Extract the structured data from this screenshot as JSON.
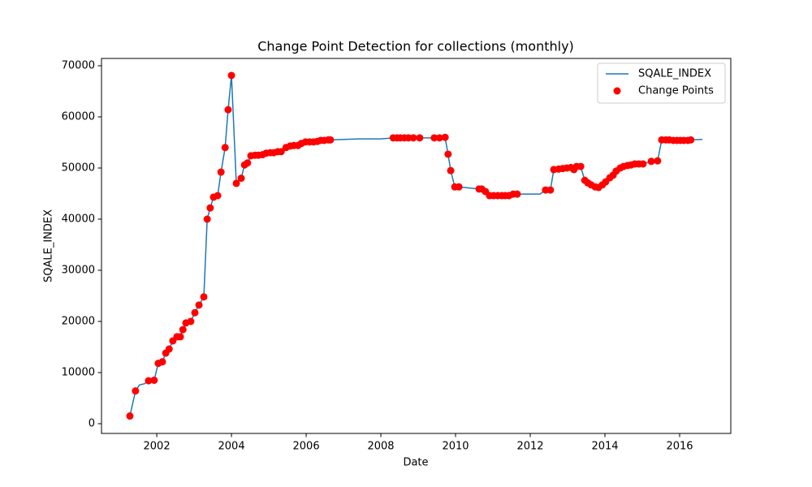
{
  "chart_data": {
    "type": "line",
    "title": "Change Point Detection for collections (monthly)",
    "xlabel": "Date",
    "ylabel": "SQALE_INDEX",
    "xlim": [
      2000.52,
      2017.37
    ],
    "ylim": [
      -1905,
      71429
    ],
    "xticks": [
      2002,
      2004,
      2006,
      2008,
      2010,
      2012,
      2014,
      2016
    ],
    "yticks": [
      0,
      10000,
      20000,
      30000,
      40000,
      50000,
      60000,
      70000
    ],
    "grid": false,
    "legend": "upper right",
    "series": [
      {
        "name": "SQALE_INDEX",
        "type": "line",
        "color": "#1f77b4",
        "x": [
          2001.28,
          2001.43,
          2001.54,
          2001.67,
          2001.78,
          2001.93,
          2002.04,
          2002.15,
          2002.24,
          2002.33,
          2002.43,
          2002.54,
          2002.63,
          2002.7,
          2002.78,
          2002.91,
          2003.02,
          2003.13,
          2003.26,
          2003.35,
          2003.43,
          2003.52,
          2003.63,
          2003.72,
          2003.83,
          2003.91,
          2004.0,
          2004.13,
          2004.26,
          2004.35,
          2004.43,
          2004.52,
          2004.63,
          2004.72,
          2004.83,
          2004.93,
          2005.04,
          2005.13,
          2005.24,
          2005.33,
          2005.46,
          2005.57,
          2005.67,
          2005.78,
          2005.87,
          2005.98,
          2006.09,
          2006.2,
          2006.3,
          2006.39,
          2006.48,
          2006.59,
          2006.65,
          2007.4,
          2008.0,
          2008.33,
          2008.43,
          2008.52,
          2008.63,
          2008.74,
          2008.87,
          2009.04,
          2009.43,
          2009.57,
          2009.72,
          2009.8,
          2009.87,
          2009.98,
          2010.09,
          2010.63,
          2010.7,
          2010.8,
          2010.91,
          2011.02,
          2011.13,
          2011.24,
          2011.33,
          2011.43,
          2011.54,
          2011.65,
          2012.26,
          2012.41,
          2012.54,
          2012.63,
          2012.76,
          2012.87,
          2012.98,
          2013.09,
          2013.17,
          2013.24,
          2013.35,
          2013.46,
          2013.54,
          2013.63,
          2013.74,
          2013.83,
          2013.93,
          2014.02,
          2014.13,
          2014.22,
          2014.3,
          2014.41,
          2014.5,
          2014.61,
          2014.7,
          2014.8,
          2014.91,
          2015.02,
          2015.24,
          2015.41,
          2015.52,
          2015.63,
          2015.72,
          2015.83,
          2015.93,
          2016.02,
          2016.11,
          2016.22,
          2016.3,
          2016.61
        ],
        "values": [
          1500,
          6400,
          7600,
          7800,
          8400,
          8500,
          11800,
          12100,
          13800,
          14600,
          16200,
          17000,
          17000,
          18400,
          19700,
          20000,
          21700,
          23200,
          24800,
          40000,
          42200,
          44300,
          44600,
          49200,
          54000,
          61400,
          68100,
          47000,
          48000,
          50600,
          51000,
          52400,
          52500,
          52500,
          52600,
          52900,
          53000,
          53000,
          53200,
          53200,
          54000,
          54300,
          54400,
          54400,
          54800,
          55100,
          55100,
          55100,
          55200,
          55400,
          55400,
          55500,
          55500,
          55700,
          55700,
          55900,
          55900,
          55900,
          55900,
          55900,
          55900,
          55900,
          55900,
          55900,
          56000,
          52700,
          49500,
          46300,
          46300,
          45900,
          45900,
          45400,
          44600,
          44600,
          44600,
          44600,
          44600,
          44600,
          44900,
          44900,
          44900,
          45700,
          45700,
          49700,
          49800,
          49900,
          50000,
          50100,
          49700,
          50300,
          50300,
          47600,
          47100,
          46700,
          46300,
          46200,
          46700,
          47300,
          48100,
          48600,
          49400,
          50000,
          50300,
          50500,
          50600,
          50800,
          50800,
          50800,
          51300,
          51400,
          55500,
          55500,
          55500,
          55400,
          55400,
          55400,
          55400,
          55400,
          55500,
          55600
        ]
      },
      {
        "name": "Change Points",
        "type": "scatter",
        "color": "#ff0000",
        "x": [
          2001.28,
          2001.43,
          2001.78,
          2001.93,
          2002.04,
          2002.15,
          2002.24,
          2002.33,
          2002.43,
          2002.54,
          2002.63,
          2002.7,
          2002.78,
          2002.91,
          2003.02,
          2003.13,
          2003.26,
          2003.35,
          2003.43,
          2003.52,
          2003.63,
          2003.72,
          2003.83,
          2003.91,
          2004.0,
          2004.13,
          2004.26,
          2004.35,
          2004.43,
          2004.52,
          2004.63,
          2004.72,
          2004.83,
          2004.93,
          2005.04,
          2005.13,
          2005.24,
          2005.33,
          2005.46,
          2005.57,
          2005.67,
          2005.78,
          2005.87,
          2005.98,
          2006.09,
          2006.2,
          2006.3,
          2006.39,
          2006.48,
          2006.59,
          2006.65,
          2008.33,
          2008.43,
          2008.52,
          2008.63,
          2008.74,
          2008.87,
          2009.04,
          2009.43,
          2009.57,
          2009.72,
          2009.8,
          2009.87,
          2009.98,
          2010.09,
          2010.63,
          2010.7,
          2010.8,
          2010.91,
          2011.02,
          2011.13,
          2011.24,
          2011.33,
          2011.43,
          2011.54,
          2011.65,
          2012.41,
          2012.54,
          2012.63,
          2012.76,
          2012.87,
          2012.98,
          2013.09,
          2013.17,
          2013.24,
          2013.35,
          2013.46,
          2013.54,
          2013.63,
          2013.74,
          2013.83,
          2013.93,
          2014.02,
          2014.13,
          2014.22,
          2014.3,
          2014.41,
          2014.5,
          2014.61,
          2014.7,
          2014.8,
          2014.91,
          2015.02,
          2015.24,
          2015.41,
          2015.52,
          2015.63,
          2015.72,
          2015.83,
          2015.93,
          2016.02,
          2016.11,
          2016.22,
          2016.3
        ],
        "values": [
          1500,
          6400,
          8400,
          8500,
          11800,
          12100,
          13800,
          14600,
          16200,
          17000,
          17000,
          18400,
          19700,
          20000,
          21700,
          23200,
          24800,
          40000,
          42200,
          44300,
          44600,
          49200,
          54000,
          61400,
          68100,
          47000,
          48000,
          50600,
          51000,
          52400,
          52500,
          52500,
          52600,
          52900,
          53000,
          53000,
          53200,
          53200,
          54000,
          54300,
          54400,
          54400,
          54800,
          55100,
          55100,
          55100,
          55200,
          55400,
          55400,
          55500,
          55500,
          55900,
          55900,
          55900,
          55900,
          55900,
          55900,
          55900,
          55900,
          55900,
          56000,
          52700,
          49500,
          46300,
          46300,
          45900,
          45900,
          45400,
          44600,
          44600,
          44600,
          44600,
          44600,
          44600,
          44900,
          44900,
          45700,
          45700,
          49700,
          49800,
          49900,
          50000,
          50100,
          49700,
          50300,
          50300,
          47600,
          47100,
          46700,
          46300,
          46200,
          46700,
          47300,
          48100,
          48600,
          49400,
          50000,
          50300,
          50500,
          50600,
          50800,
          50800,
          50800,
          51300,
          51400,
          55500,
          55500,
          55500,
          55400,
          55400,
          55400,
          55400,
          55400,
          55500
        ]
      }
    ]
  }
}
